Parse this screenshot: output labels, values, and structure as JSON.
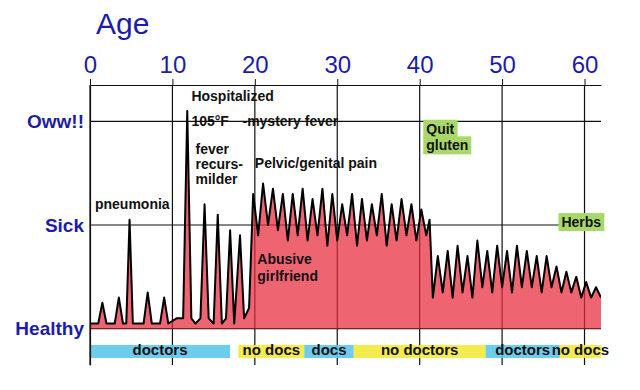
{
  "chart_data": {
    "type": "area",
    "xlabel": "Age",
    "x": [
      0,
      1,
      1.5,
      2,
      3,
      3.5,
      4,
      4.4,
      4.8,
      5.2,
      6.5,
      7,
      7.5,
      8.5,
      9,
      9.5,
      10.5,
      11.3,
      11.8,
      12.3,
      12.8,
      13.4,
      13.9,
      14.4,
      15,
      15.5,
      16,
      16.5,
      17,
      17.5,
      18.2,
      18.7,
      19.3,
      19.8,
      20.4,
      21.0,
      21.6,
      22.2,
      22.8,
      23.4,
      24.0,
      24.6,
      25.2,
      25.8,
      26.4,
      27.0,
      27.6,
      28.2,
      28.8,
      29.4,
      30.0,
      30.6,
      31.2,
      31.8,
      32.4,
      33.0,
      33.6,
      34.2,
      34.8,
      35.4,
      36.0,
      36.6,
      37.2,
      37.8,
      38.4,
      39.0,
      39.6,
      40.2,
      40.8,
      41.2,
      41.6,
      42.2,
      42.8,
      43.4,
      44.0,
      44.6,
      45.2,
      45.8,
      46.4,
      47.0,
      47.6,
      48.2,
      48.8,
      49.4,
      50.0,
      50.6,
      51.2,
      51.8,
      52.4,
      53.0,
      53.6,
      54.2,
      54.8,
      55.4,
      56.0,
      56.6,
      57.2,
      57.8,
      58.4,
      59.0,
      59.6,
      60.2,
      60.8,
      61.4,
      62.0
    ],
    "values": [
      0.05,
      0.05,
      0.25,
      0.05,
      0.05,
      0.3,
      0.05,
      0.05,
      1.05,
      0.05,
      0.05,
      0.35,
      0.05,
      0.05,
      0.3,
      0.05,
      0.1,
      0.1,
      2.1,
      0.1,
      0.05,
      0.1,
      1.2,
      0.1,
      0.05,
      1.1,
      0.05,
      0.1,
      0.95,
      0.05,
      0.9,
      0.1,
      0.2,
      1.3,
      0.9,
      1.4,
      1.0,
      1.35,
      0.95,
      1.3,
      0.85,
      1.3,
      0.9,
      1.35,
      0.85,
      1.25,
      0.9,
      1.35,
      0.8,
      1.3,
      0.85,
      1.2,
      0.9,
      1.3,
      0.8,
      1.25,
      0.85,
      1.2,
      0.9,
      1.3,
      0.8,
      1.2,
      0.85,
      1.25,
      0.9,
      1.2,
      0.85,
      1.15,
      0.9,
      1.05,
      0.3,
      0.7,
      0.35,
      0.75,
      0.3,
      0.8,
      0.35,
      0.7,
      0.3,
      0.85,
      0.4,
      0.75,
      0.35,
      0.8,
      0.4,
      0.75,
      0.35,
      0.8,
      0.4,
      0.75,
      0.4,
      0.7,
      0.35,
      0.7,
      0.4,
      0.6,
      0.35,
      0.55,
      0.35,
      0.5,
      0.3,
      0.45,
      0.3,
      0.4,
      0.3
    ],
    "color": "#e8283a",
    "xlim": [
      0,
      62
    ],
    "xticks": [
      0,
      10,
      20,
      30,
      40,
      50,
      60
    ],
    "ylim": [
      -0.35,
      2.35
    ],
    "yticks": [
      {
        "value": 0,
        "label": "Healthy"
      },
      {
        "value": 1,
        "label": "Sick"
      },
      {
        "value": 2,
        "label": "Oww!!"
      }
    ],
    "grid": true,
    "annotations": [
      {
        "text": "pneumonia",
        "x": 0.6,
        "y": 1.15
      },
      {
        "text": "Hospitalized",
        "x": 12.3,
        "y": 2.2
      },
      {
        "text": "105°F",
        "x": 12.3,
        "y": 1.95
      },
      {
        "text": "-mystery fever",
        "x": 18.5,
        "y": 1.95
      },
      {
        "text": "fever",
        "x": 12.8,
        "y": 1.68
      },
      {
        "text": "recurs-",
        "x": 12.8,
        "y": 1.54
      },
      {
        "text": "milder",
        "x": 12.8,
        "y": 1.4
      },
      {
        "text": "Pelvic/genital pain",
        "x": 20,
        "y": 1.55
      },
      {
        "text": "Abusive",
        "x": 20.3,
        "y": 0.62
      },
      {
        "text": "girlfriend",
        "x": 20.3,
        "y": 0.46
      },
      {
        "text": "Quit",
        "x": 40.8,
        "y": 1.88,
        "color": "#a8d86a"
      },
      {
        "text": "gluten",
        "x": 40.8,
        "y": 1.72,
        "color": "#a8d86a"
      },
      {
        "text": "Herbs",
        "x": 57.2,
        "y": 0.98,
        "color": "#a8d86a"
      }
    ],
    "bands": [
      {
        "label": "doctors",
        "start": 0,
        "end": 17,
        "color": "#5ec8ea"
      },
      {
        "label": "no docs",
        "start": 18,
        "end": 26,
        "color": "#f3e93b"
      },
      {
        "label": "docs",
        "start": 26,
        "end": 32,
        "color": "#5ec8ea"
      },
      {
        "label": "no doctors",
        "start": 32,
        "end": 48,
        "color": "#f3e93b"
      },
      {
        "label": "doctors",
        "start": 48,
        "end": 57,
        "color": "#5ec8ea"
      },
      {
        "label": "no docs",
        "start": 57,
        "end": 62,
        "color": "#f3e93b"
      }
    ]
  }
}
